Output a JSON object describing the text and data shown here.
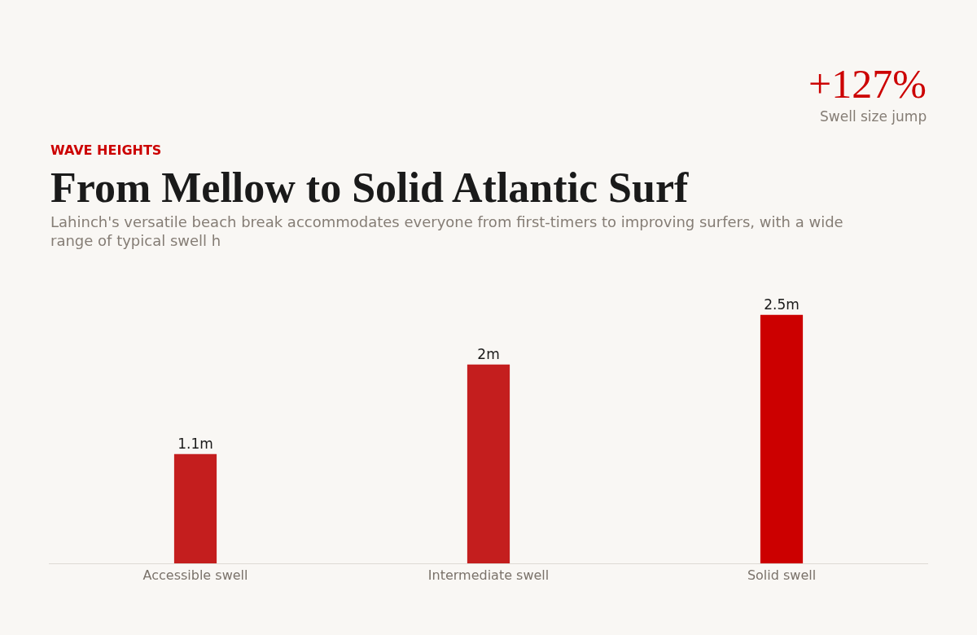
{
  "chart_data": {
    "type": "bar",
    "title": "From Mellow to Solid Atlantic Surf",
    "subtitle": "Lahinch's versatile beach break accommodates everyone from first-timers to improving surfers, with a wide range of typical swell h",
    "annotations": [
      "WAVE HEIGHTS",
      "+127%",
      "Swell size jump"
    ],
    "categories": [
      "Accessible swell",
      "Intermediate swell",
      "Solid swell"
    ],
    "values": [
      1.1,
      2,
      2.5
    ],
    "value_labels": [
      "1.1m",
      "2m",
      "2.5m"
    ],
    "colors": [
      "#c41e1e",
      "#c41e1e",
      "#cc0000"
    ],
    "grid": false,
    "legend": false
  }
}
